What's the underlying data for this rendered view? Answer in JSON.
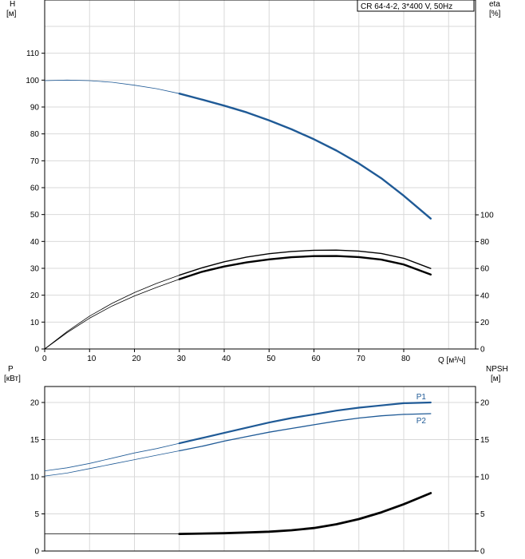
{
  "chart_data": [
    {
      "type": "line",
      "title": "CR 64-4-2, 3*400 V, 50Hz",
      "xlabel": "Q [м³/ч]",
      "ylabel": "H\n[м]",
      "ylabel_right": "eta\n[%]",
      "xlim": [
        0,
        96
      ],
      "ylim": [
        0,
        120
      ],
      "ylim_right": [
        0,
        260
      ],
      "x_ticks": [
        "0",
        "10",
        "20",
        "30",
        "40",
        "50",
        "60",
        "70",
        "80"
      ],
      "y_ticks": [
        "0",
        "10",
        "20",
        "30",
        "40",
        "50",
        "60",
        "70",
        "80",
        "90",
        "100",
        "110"
      ],
      "y_ticks_right": [
        "0",
        "20",
        "40",
        "60",
        "80",
        "100"
      ],
      "grid": true,
      "series": [
        {
          "axis": "left",
          "color": "#1f5a96",
          "x": [
            0,
            5,
            10,
            15,
            20,
            25,
            30,
            35,
            40,
            45,
            50,
            55,
            60,
            65,
            70,
            75,
            80,
            86
          ],
          "values": [
            99.8,
            100,
            99.8,
            99.2,
            98.1,
            96.8,
            95,
            92.8,
            90.5,
            88,
            85,
            81.7,
            78,
            73.8,
            69,
            63.5,
            57,
            48.5
          ]
        },
        {
          "axis": "right",
          "color": "#000000",
          "x": [
            0,
            5,
            10,
            15,
            20,
            25,
            30,
            35,
            40,
            45,
            50,
            55,
            60,
            65,
            70,
            75,
            80,
            86
          ],
          "values": [
            0,
            13,
            24.5,
            34,
            42,
            49,
            55,
            60.5,
            65,
            68.5,
            71,
            72.7,
            73.6,
            73.7,
            73,
            71.2,
            67.6,
            60
          ]
        },
        {
          "axis": "right",
          "color": "#000000",
          "x": [
            0,
            5,
            10,
            15,
            20,
            25,
            30,
            35,
            40,
            45,
            50,
            55,
            60,
            65,
            70,
            75,
            80,
            86
          ],
          "values": [
            0,
            12.2,
            23,
            32,
            39.5,
            46,
            52,
            57.5,
            61.5,
            64.5,
            66.8,
            68.4,
            69.2,
            69.3,
            68.5,
            66.6,
            63,
            55.5
          ]
        }
      ]
    },
    {
      "type": "line",
      "xlabel": "",
      "ylabel": "P\n[кВт]",
      "ylabel_right": "NPSH\n[м]",
      "xlim": [
        0,
        96
      ],
      "ylim": [
        0,
        25
      ],
      "ylim_right": [
        0,
        25
      ],
      "y_ticks": [
        "0",
        "5",
        "10",
        "15",
        "20"
      ],
      "y_ticks_right": [
        "0",
        "5",
        "10",
        "15",
        "20"
      ],
      "grid": true,
      "series": [
        {
          "name": "P1",
          "axis": "left",
          "color": "#1f5a96",
          "x": [
            0,
            5,
            10,
            15,
            20,
            25,
            30,
            35,
            40,
            45,
            50,
            55,
            60,
            65,
            70,
            75,
            80,
            86
          ],
          "values": [
            10.8,
            11.2,
            11.8,
            12.5,
            13.2,
            13.8,
            14.5,
            15.2,
            15.9,
            16.6,
            17.3,
            17.9,
            18.4,
            18.9,
            19.3,
            19.6,
            19.9,
            20.0
          ]
        },
        {
          "name": "P2",
          "axis": "left",
          "color": "#1f5a96",
          "x": [
            0,
            5,
            10,
            15,
            20,
            25,
            30,
            35,
            40,
            45,
            50,
            55,
            60,
            65,
            70,
            75,
            80,
            86
          ],
          "values": [
            10.1,
            10.5,
            11.1,
            11.7,
            12.3,
            12.9,
            13.5,
            14.1,
            14.8,
            15.4,
            16,
            16.5,
            17,
            17.5,
            17.9,
            18.2,
            18.4,
            18.5
          ]
        },
        {
          "axis": "right",
          "color": "#000000",
          "x": [
            0,
            10,
            20,
            30,
            40,
            45,
            50,
            55,
            60,
            65,
            70,
            75,
            80,
            86
          ],
          "values": [
            2.3,
            2.3,
            2.3,
            2.3,
            2.4,
            2.5,
            2.6,
            2.8,
            3.1,
            3.6,
            4.3,
            5.2,
            6.3,
            7.8
          ]
        }
      ]
    }
  ]
}
